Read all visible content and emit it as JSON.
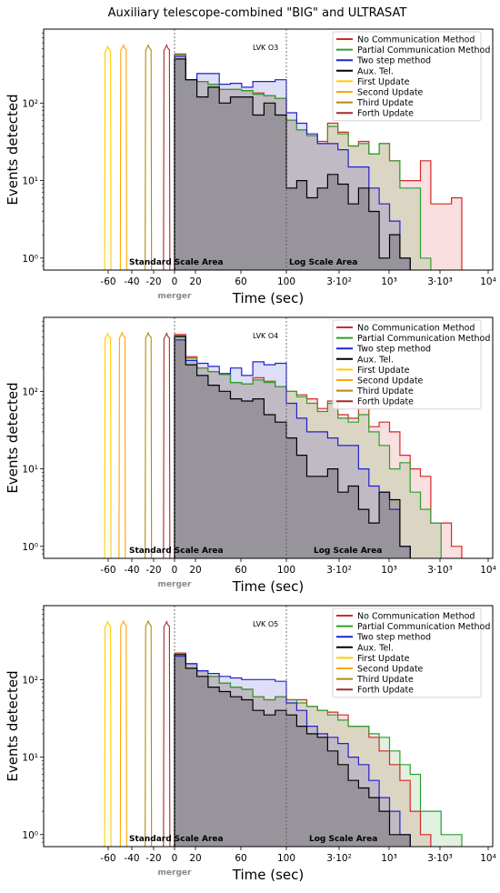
{
  "figure": {
    "title": "Auxiliary telescope-combined \"BIG\" and ULTRASAT"
  },
  "chart_data": [
    {
      "type": "area",
      "panel": "LVK O3",
      "xlabel": "Time (sec)",
      "ylabel": "Events detected",
      "y_scale": "log",
      "ylim": [
        0.7,
        900
      ],
      "x_scale": "linear from -100 to 100 s, log from 100 to 10000 s",
      "x_tick_labels": [
        "-60",
        "-40",
        "-20",
        "0",
        "20",
        "60",
        "100",
        "3·10²",
        "10³",
        "3·10³",
        "10⁴"
      ],
      "y_tick_labels": [
        "10⁰",
        "10¹",
        "10²"
      ],
      "annotations": [
        "Standard Scale Area",
        "Log Scale Area",
        "merger"
      ],
      "legend": [
        "No Communication Method",
        "Partial Communication Method",
        "Two step method",
        "Aux. Tel.",
        "First Update",
        "Second Update",
        "Third Update",
        "Forth Update"
      ],
      "legend_placement": "top-right",
      "bin_edges_linear": [
        0,
        10,
        20,
        30,
        40,
        50,
        60,
        70,
        80,
        90,
        100
      ],
      "bin_edges_log": [
        100,
        126,
        158,
        200,
        251,
        316,
        398,
        501,
        631,
        794,
        1000,
        1259,
        1585,
        1995,
        2512,
        3162,
        3981,
        5012
      ],
      "series": [
        {
          "name": "No Communication Method",
          "color": "#d62728",
          "linear": [
            430,
            200,
            190,
            175,
            150,
            150,
            145,
            135,
            125,
            115
          ],
          "log": [
            60,
            45,
            38,
            32,
            55,
            42,
            28,
            32,
            22,
            30,
            18,
            10,
            10,
            18,
            5,
            5,
            6
          ]
        },
        {
          "name": "Partial Communication Method",
          "color": "#2ca02c",
          "linear": [
            420,
            200,
            190,
            175,
            150,
            150,
            145,
            130,
            125,
            115
          ],
          "log": [
            60,
            45,
            38,
            30,
            50,
            40,
            28,
            30,
            22,
            30,
            18,
            8,
            8,
            1,
            0,
            0,
            0
          ]
        },
        {
          "name": "Two step method",
          "color": "#2222cc",
          "linear": [
            400,
            200,
            240,
            240,
            175,
            180,
            160,
            190,
            190,
            200
          ],
          "log": [
            75,
            55,
            40,
            30,
            30,
            25,
            15,
            15,
            8,
            5,
            3,
            1,
            0,
            0,
            0,
            0,
            0
          ]
        },
        {
          "name": "Aux. Tel.",
          "color": "#000000",
          "linear": [
            370,
            200,
            120,
            160,
            100,
            120,
            120,
            70,
            100,
            70
          ],
          "log": [
            8,
            10,
            6,
            8,
            12,
            9,
            5,
            8,
            4,
            1,
            2,
            1,
            0,
            0,
            0,
            0,
            0
          ]
        }
      ],
      "updates": [
        {
          "name": "First Update",
          "color": "#ffcc00",
          "center": -51,
          "peak": 540
        },
        {
          "name": "Second Update",
          "color": "#ffa500",
          "center": -39,
          "peak": 560
        },
        {
          "name": "Third Update",
          "color": "#b8860b",
          "center": -20,
          "peak": 560
        },
        {
          "name": "Forth Update",
          "color": "#a52a2a",
          "center": -6,
          "peak": 560
        }
      ]
    },
    {
      "type": "area",
      "panel": "LVK O4",
      "xlabel": "Time (sec)",
      "ylabel": "Events detected",
      "y_scale": "log",
      "ylim": [
        0.7,
        900
      ],
      "x_scale": "linear from -100 to 100 s, log from 100 to 10000 s",
      "x_tick_labels": [
        "-60",
        "-40",
        "-20",
        "0",
        "20",
        "60",
        "100",
        "3·10²",
        "10³",
        "3·10³",
        "10⁴"
      ],
      "y_tick_labels": [
        "10⁰",
        "10¹",
        "10²"
      ],
      "annotations": [
        "Standard Scale Area",
        "Log Scale Area",
        "merger"
      ],
      "legend": [
        "No Communication Method",
        "Partial Communication Method",
        "Two step method",
        "Aux. Tel.",
        "First Update",
        "Second Update",
        "Third Update",
        "Forth Update"
      ],
      "legend_placement": "top-right",
      "bin_edges_linear": [
        0,
        10,
        20,
        30,
        40,
        50,
        60,
        70,
        80,
        90,
        100
      ],
      "bin_edges_log": [
        100,
        126,
        158,
        200,
        251,
        316,
        398,
        501,
        631,
        794,
        1000,
        1259,
        1585,
        1995,
        2512,
        3162,
        3981,
        5012
      ],
      "series": [
        {
          "name": "No Communication Method",
          "color": "#d62728",
          "linear": [
            540,
            280,
            200,
            180,
            165,
            130,
            125,
            150,
            135,
            115
          ],
          "log": [
            100,
            90,
            80,
            60,
            75,
            50,
            45,
            60,
            35,
            40,
            30,
            15,
            10,
            8,
            2,
            2,
            1
          ]
        },
        {
          "name": "Partial Communication Method",
          "color": "#2ca02c",
          "linear": [
            520,
            270,
            200,
            180,
            165,
            130,
            125,
            140,
            130,
            115
          ],
          "log": [
            100,
            85,
            70,
            55,
            70,
            45,
            40,
            50,
            30,
            20,
            10,
            12,
            5,
            3,
            2,
            0,
            0
          ]
        },
        {
          "name": "Two step method",
          "color": "#2222cc",
          "linear": [
            460,
            250,
            230,
            210,
            170,
            200,
            160,
            240,
            220,
            230
          ],
          "log": [
            70,
            45,
            30,
            30,
            25,
            20,
            20,
            10,
            6,
            5,
            3,
            1,
            0,
            0,
            0,
            0,
            0
          ]
        },
        {
          "name": "Aux. Tel.",
          "color": "#000000",
          "linear": [
            510,
            220,
            160,
            120,
            100,
            80,
            75,
            80,
            50,
            40
          ],
          "log": [
            25,
            15,
            8,
            8,
            10,
            5,
            6,
            3,
            2,
            5,
            4,
            1,
            0,
            0,
            0,
            0,
            0
          ]
        }
      ],
      "updates": [
        {
          "name": "First Update",
          "color": "#ffcc00",
          "center": -51,
          "peak": 560
        },
        {
          "name": "Second Update",
          "color": "#ffa500",
          "center": -40,
          "peak": 570
        },
        {
          "name": "Third Update",
          "color": "#b8860b",
          "center": -20,
          "peak": 570
        },
        {
          "name": "Forth Update",
          "color": "#a52a2a",
          "center": -6,
          "peak": 560
        }
      ]
    },
    {
      "type": "area",
      "panel": "LVK O5",
      "xlabel": "Time (sec)",
      "ylabel": "Events detected",
      "y_scale": "log",
      "ylim": [
        0.7,
        900
      ],
      "x_scale": "linear from -100 to 100 s, log from 100 to 10000 s",
      "x_tick_labels": [
        "-60",
        "-40",
        "-20",
        "0",
        "20",
        "60",
        "100",
        "3·10²",
        "10³",
        "3·10³",
        "10⁴"
      ],
      "y_tick_labels": [
        "10⁰",
        "10¹",
        "10²"
      ],
      "annotations": [
        "Standard Scale Area",
        "Log Scale Area",
        "merger"
      ],
      "legend": [
        "No Communication Method",
        "Partial Communication Method",
        "Two step method",
        "Aux. Tel.",
        "First Update",
        "Second Update",
        "Third Update",
        "Forth Update"
      ],
      "legend_placement": "top-right",
      "bin_edges_linear": [
        0,
        10,
        20,
        30,
        40,
        50,
        60,
        70,
        80,
        90,
        100
      ],
      "bin_edges_log": [
        100,
        126,
        158,
        200,
        251,
        316,
        398,
        501,
        631,
        794,
        1000,
        1259,
        1585,
        1995,
        2512,
        3162,
        3981,
        5012
      ],
      "series": [
        {
          "name": "No Communication Method",
          "color": "#d62728",
          "linear": [
            220,
            160,
            130,
            110,
            90,
            80,
            75,
            60,
            55,
            60
          ],
          "log": [
            55,
            55,
            45,
            40,
            38,
            35,
            25,
            25,
            18,
            12,
            8,
            5,
            2,
            1,
            0,
            0,
            0
          ]
        },
        {
          "name": "Partial Communication Method",
          "color": "#2ca02c",
          "linear": [
            210,
            160,
            130,
            110,
            90,
            80,
            75,
            60,
            55,
            60
          ],
          "log": [
            55,
            50,
            45,
            40,
            35,
            30,
            25,
            25,
            20,
            18,
            12,
            8,
            6,
            2,
            2,
            1,
            1
          ]
        },
        {
          "name": "Two step method",
          "color": "#2222cc",
          "linear": [
            200,
            160,
            130,
            120,
            110,
            105,
            100,
            100,
            100,
            95
          ],
          "log": [
            50,
            40,
            25,
            20,
            18,
            15,
            10,
            8,
            5,
            3,
            2,
            1,
            0,
            0,
            0,
            0,
            0
          ]
        },
        {
          "name": "Aux. Tel.",
          "color": "#000000",
          "linear": [
            210,
            140,
            110,
            80,
            70,
            60,
            55,
            40,
            35,
            40
          ],
          "log": [
            35,
            25,
            20,
            18,
            12,
            8,
            5,
            4,
            3,
            2,
            1,
            1,
            0,
            0,
            0,
            0,
            0
          ]
        }
      ],
      "updates": [
        {
          "name": "First Update",
          "color": "#ffcc00",
          "center": -51,
          "peak": 560
        },
        {
          "name": "Second Update",
          "color": "#ffa500",
          "center": -39,
          "peak": 570
        },
        {
          "name": "Third Update",
          "color": "#b8860b",
          "center": -20,
          "peak": 570
        },
        {
          "name": "Forth Update",
          "color": "#a52a2a",
          "center": -6,
          "peak": 560
        }
      ]
    }
  ]
}
